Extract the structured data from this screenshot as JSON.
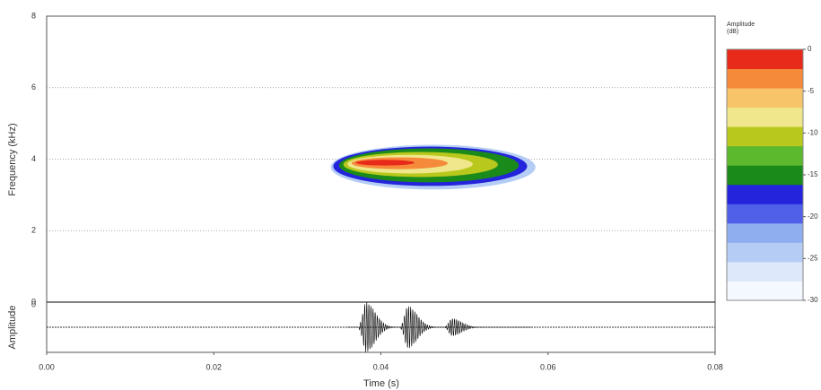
{
  "chart_data": {
    "type": "spectrogram",
    "xlabel": "Time (s)",
    "ylabel": "Frequency (kHz)",
    "osc_ylabel": "Amplitude",
    "osc_yticks": [
      0
    ],
    "xlim": [
      0,
      0.08
    ],
    "xticks": [
      {
        "value": 0,
        "label": "0.00"
      },
      0.02,
      0.04,
      0.06,
      0.08
    ],
    "ylim": [
      0,
      8
    ],
    "yticks": [
      0,
      2,
      4,
      6,
      8
    ],
    "grid": true,
    "colorbar_title": "Amplitude (dB)",
    "clim": [
      -30,
      0
    ],
    "cticks": [
      0,
      -5,
      -10,
      -15,
      -20,
      -25,
      -30
    ],
    "colormap": [
      "#f4f8ff",
      "#dde9fb",
      "#b5cdf5",
      "#8eaef0",
      "#5060e8",
      "#2424dc",
      "#1a8a1a",
      "#5cb82c",
      "#b8c81c",
      "#f0e68c",
      "#f7c46a",
      "#f58a3a",
      "#e82a1a"
    ],
    "contours": [
      {
        "level": -25,
        "t0": 0.034,
        "t1": 0.0585,
        "f_low": 3.15,
        "f_high": 4.4,
        "color": "#b5cdf5"
      },
      {
        "level": -20,
        "t0": 0.0343,
        "t1": 0.0575,
        "f_low": 3.25,
        "f_high": 4.35,
        "color": "#2424dc"
      },
      {
        "level": -15,
        "t0": 0.035,
        "t1": 0.0565,
        "f_low": 3.35,
        "f_high": 4.3,
        "color": "#1a8a1a"
      },
      {
        "level": -10,
        "t0": 0.0355,
        "t1": 0.054,
        "f_low": 3.5,
        "f_high": 4.2,
        "color": "#b8c81c"
      },
      {
        "level": -7,
        "t0": 0.036,
        "t1": 0.051,
        "f_low": 3.6,
        "f_high": 4.12,
        "color": "#f0e68c"
      },
      {
        "level": -4,
        "t0": 0.0365,
        "t1": 0.048,
        "f_low": 3.72,
        "f_high": 4.05,
        "color": "#f58a3a"
      },
      {
        "level": -1,
        "t0": 0.037,
        "t1": 0.044,
        "f_low": 3.82,
        "f_high": 3.98,
        "color": "#e82a1a"
      }
    ],
    "pulses": [
      {
        "t": 0.0382,
        "amp": 1.0
      },
      {
        "t": 0.0432,
        "amp": 0.85
      },
      {
        "t": 0.0485,
        "amp": 0.35
      }
    ]
  }
}
